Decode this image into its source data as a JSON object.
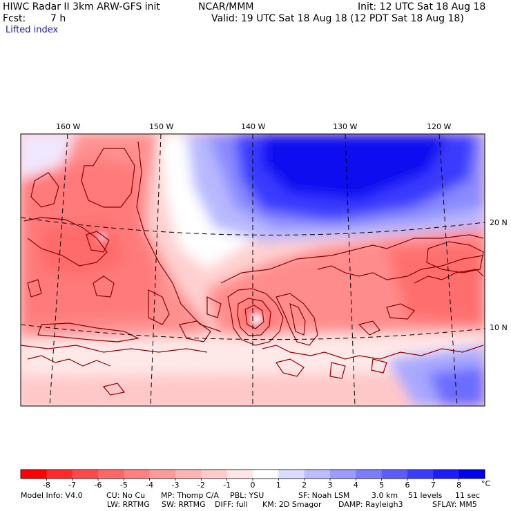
{
  "header": {
    "title_left": "HIWC Radar II 3km ARW-GFS init",
    "source": "NCAR/MMM",
    "init": "Init: 12 UTC Sat 18 Aug 18",
    "fcst_label": "Fcst:",
    "fcst_value": "7 h",
    "valid": "Valid: 19 UTC Sat 18 Aug 18 (12 PDT Sat 18 Aug 18)",
    "field": "Lifted index"
  },
  "map": {
    "lon_labels": [
      "160 W",
      "150 W",
      "140 W",
      "130 W",
      "120 W"
    ],
    "lat_labels": [
      "20 N",
      "10 N"
    ],
    "colors": {
      "contour": "#8b0000",
      "grid": "#000000"
    }
  },
  "colorbar": {
    "ticks": [
      "-8",
      "-7",
      "-6",
      "-5",
      "-4",
      "-3",
      "-2",
      "-1",
      "0",
      "1",
      "2",
      "3",
      "4",
      "5",
      "6",
      "7",
      "8"
    ],
    "unit": "°C",
    "colors": [
      "#ff0000",
      "#ff2a2a",
      "#ff4a4a",
      "#ff6666",
      "#ff8080",
      "#ff9a9a",
      "#ffb3b3",
      "#ffcccc",
      "#ffe6e6",
      "#ffffff",
      "#dcdcff",
      "#bcbcff",
      "#9c9cff",
      "#7c7cff",
      "#5c5cff",
      "#3c3cff",
      "#1c1cff",
      "#0000ee"
    ]
  },
  "footer": {
    "line1": [
      "Model Info: V4.0",
      "CU: No Cu",
      "MP: Thomp C/A",
      "PBL: YSU",
      "SF: Noah LSM",
      "3.0 km",
      "51 levels",
      "11 sec"
    ],
    "line2": [
      "LW: RRTMG",
      "SW: RRTMG",
      "DIFF: full",
      "KM: 2D Smagor",
      "DAMP: Rayleigh3",
      "SFLAY: MM5"
    ]
  }
}
